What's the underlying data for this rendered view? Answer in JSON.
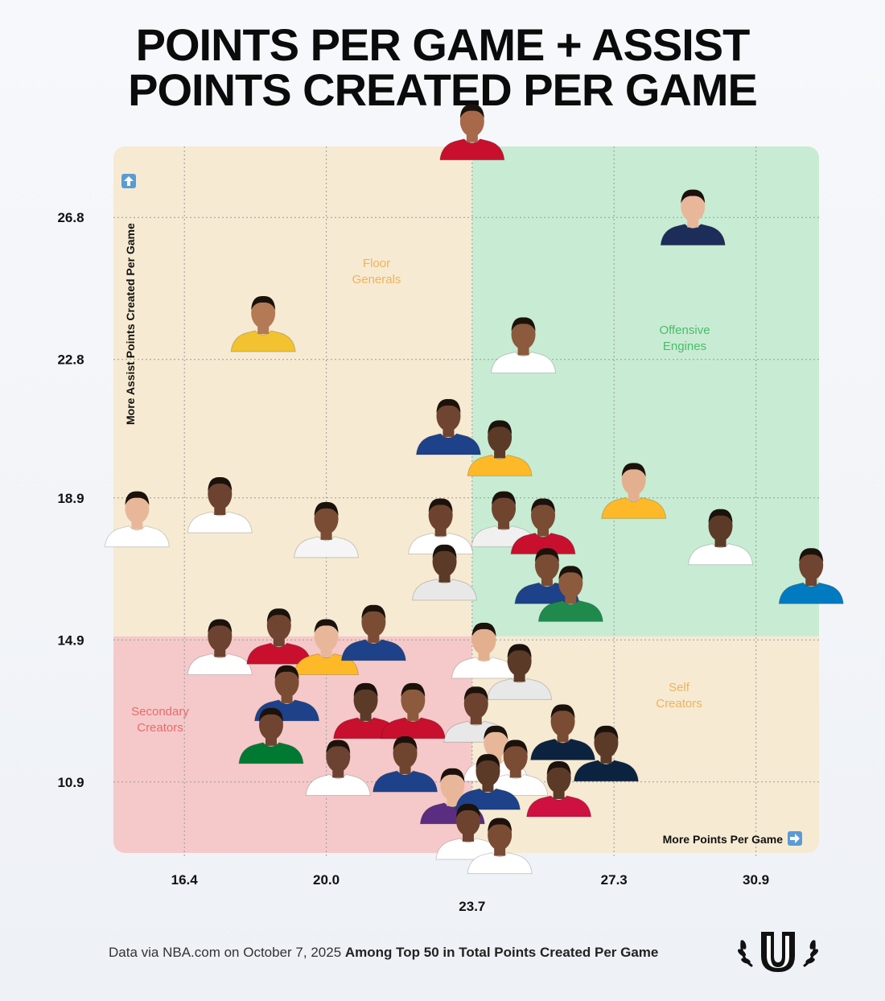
{
  "title": {
    "line1": "POINTS PER GAME + ASSIST",
    "line2": "POINTS CREATED PER GAME"
  },
  "footer": {
    "source": "Data via NBA.com on October 7, 2025",
    "note": "Among Top 50 in Total Points Created Per Game"
  },
  "colors": {
    "floor_generals": "#f6ead2",
    "offensive_engines": "#c7ecd3",
    "secondary_creators": "#f5c9c9",
    "self_creators": "#f6ead2",
    "floor_generals_label": "#f0b35a",
    "offensive_engines_label": "#4cbb6a",
    "secondary_creators_label": "#ea6a6a",
    "self_creators_label": "#f0b35a",
    "dot": "#1b1b1b"
  },
  "chart_data": {
    "type": "scatter",
    "title": "POINTS PER GAME + ASSIST POINTS CREATED PER GAME",
    "xlabel": "More Points Per Game",
    "ylabel": "More Assist Points Created Per Game",
    "x_ticks": [
      "16.4",
      "20.0",
      "23.7",
      "27.3",
      "30.9"
    ],
    "y_ticks": [
      "26.8",
      "22.8",
      "18.9",
      "14.9",
      "10.9"
    ],
    "x_tick_values": [
      16.4,
      20.0,
      23.7,
      27.3,
      30.9
    ],
    "y_tick_values": [
      26.8,
      22.8,
      18.9,
      14.9,
      10.9
    ],
    "xlim": [
      14.6,
      32.5
    ],
    "ylim": [
      8.9,
      28.8
    ],
    "x_mid": 23.7,
    "y_mid": 15.0,
    "grid": true,
    "quadrants": [
      {
        "name": "Floor Generals",
        "lines": [
          "Floor",
          "Generals"
        ],
        "region": "top-left"
      },
      {
        "name": "Offensive Engines",
        "lines": [
          "Offensive",
          "Engines"
        ],
        "region": "top-right"
      },
      {
        "name": "Secondary Creators",
        "lines": [
          "Secondary",
          "Creators"
        ],
        "region": "bottom-left"
      },
      {
        "name": "Self Creators",
        "lines": [
          "Self",
          "Creators"
        ],
        "region": "bottom-right"
      }
    ],
    "points": [
      {
        "x": 23.7,
        "y": 29.1,
        "jersey": "#c8102e",
        "skin": "#a7694a"
      },
      {
        "x": 29.3,
        "y": 26.7,
        "jersey": "#1d2d5a",
        "skin": "#e8b79a"
      },
      {
        "x": 18.4,
        "y": 23.7,
        "jersey": "#f2c230",
        "skin": "#b47a56"
      },
      {
        "x": 25.0,
        "y": 23.1,
        "jersey": "#ffffff",
        "skin": "#8c5a3c"
      },
      {
        "x": 23.1,
        "y": 20.8,
        "jersey": "#1d428a",
        "skin": "#6f4430"
      },
      {
        "x": 24.4,
        "y": 20.2,
        "jersey": "#fdb927",
        "skin": "#5c3a28"
      },
      {
        "x": 27.8,
        "y": 19.0,
        "jersey": "#fdb927",
        "skin": "#e3b08f"
      },
      {
        "x": 17.3,
        "y": 18.6,
        "jersey": "#ffffff",
        "skin": "#6b4330"
      },
      {
        "x": 15.2,
        "y": 18.2,
        "jersey": "#ffffff",
        "skin": "#e8b79a"
      },
      {
        "x": 20.0,
        "y": 17.9,
        "jersey": "#f5f5f5",
        "skin": "#7a4c34"
      },
      {
        "x": 22.9,
        "y": 18.0,
        "jersey": "#ffffff",
        "skin": "#6d4330"
      },
      {
        "x": 24.5,
        "y": 18.2,
        "jersey": "#f0f0f0",
        "skin": "#704530"
      },
      {
        "x": 25.5,
        "y": 18.0,
        "jersey": "#c8102e",
        "skin": "#7a4c34"
      },
      {
        "x": 30.0,
        "y": 17.7,
        "jersey": "#ffffff",
        "skin": "#5c3a28"
      },
      {
        "x": 32.3,
        "y": 16.6,
        "jersey": "#007ac1",
        "skin": "#6f4430"
      },
      {
        "x": 23.0,
        "y": 16.7,
        "jersey": "#e8e8e8",
        "skin": "#5c3a28"
      },
      {
        "x": 25.6,
        "y": 16.6,
        "jersey": "#1d428a",
        "skin": "#7a4c34"
      },
      {
        "x": 26.2,
        "y": 16.1,
        "jersey": "#1f8a4c",
        "skin": "#8c5a3c"
      },
      {
        "x": 17.3,
        "y": 14.6,
        "jersey": "#ffffff",
        "skin": "#6b4330"
      },
      {
        "x": 18.8,
        "y": 14.9,
        "jersey": "#c8102e",
        "skin": "#6f4430"
      },
      {
        "x": 20.0,
        "y": 14.6,
        "jersey": "#fdb927",
        "skin": "#e8b79a"
      },
      {
        "x": 21.2,
        "y": 15.0,
        "jersey": "#1d428a",
        "skin": "#7a4c34"
      },
      {
        "x": 24.0,
        "y": 14.5,
        "jersey": "#ffffff",
        "skin": "#e3b08f"
      },
      {
        "x": 24.9,
        "y": 13.9,
        "jersey": "#e8e8e8",
        "skin": "#5c3a28"
      },
      {
        "x": 19.0,
        "y": 13.3,
        "jersey": "#1d428a",
        "skin": "#7a4c34"
      },
      {
        "x": 21.0,
        "y": 12.8,
        "jersey": "#c8102e",
        "skin": "#5c3a28"
      },
      {
        "x": 22.2,
        "y": 12.8,
        "jersey": "#c8102e",
        "skin": "#8c5a3c"
      },
      {
        "x": 23.8,
        "y": 12.7,
        "jersey": "#e8e8e8",
        "skin": "#6d4330"
      },
      {
        "x": 18.6,
        "y": 12.1,
        "jersey": "#007a33",
        "skin": "#6f4430"
      },
      {
        "x": 24.3,
        "y": 11.6,
        "jersey": "#ffffff",
        "skin": "#e8b79a"
      },
      {
        "x": 26.0,
        "y": 12.2,
        "jersey": "#0c2340",
        "skin": "#7a4c34"
      },
      {
        "x": 27.1,
        "y": 11.6,
        "jersey": "#0c2340",
        "skin": "#5c3a28"
      },
      {
        "x": 20.3,
        "y": 11.2,
        "jersey": "#ffffff",
        "skin": "#6b4330"
      },
      {
        "x": 22.0,
        "y": 11.3,
        "jersey": "#1d428a",
        "skin": "#704530"
      },
      {
        "x": 24.8,
        "y": 11.2,
        "jersey": "#ffffff",
        "skin": "#7a4c34"
      },
      {
        "x": 25.9,
        "y": 10.6,
        "jersey": "#ce1141",
        "skin": "#5c3a28"
      },
      {
        "x": 23.2,
        "y": 10.4,
        "jersey": "#5a2d81",
        "skin": "#e8b79a"
      },
      {
        "x": 24.1,
        "y": 10.8,
        "jersey": "#1d428a",
        "skin": "#5c3a28"
      },
      {
        "x": 23.6,
        "y": 9.4,
        "jersey": "#ffffff",
        "skin": "#6d4330"
      },
      {
        "x": 24.4,
        "y": 9.0,
        "jersey": "#ffffff",
        "skin": "#7a4c34"
      }
    ]
  }
}
